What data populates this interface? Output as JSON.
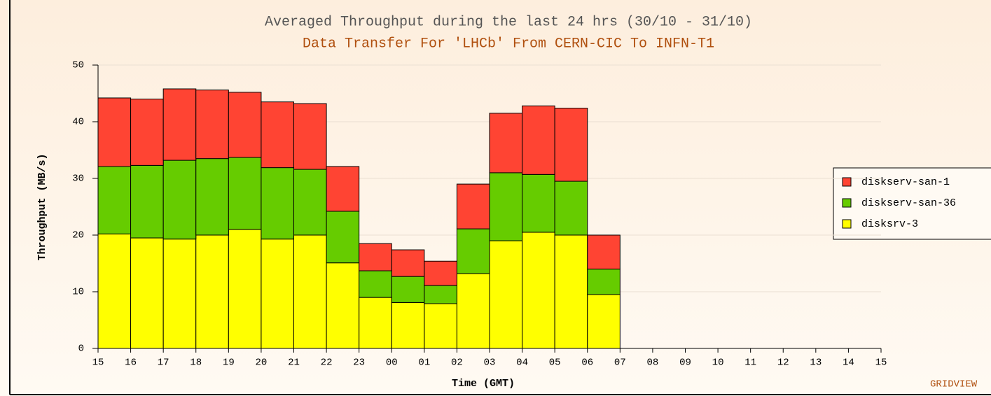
{
  "chart_data": {
    "type": "stacked_bar",
    "title": "Averaged Throughput during the last 24 hrs (30/10 - 31/10)",
    "subtitle": "Data Transfer For 'LHCb' From CERN-CIC To INFN-T1",
    "x_label": "Time (GMT)",
    "y_label": "Throughput (MB/s)",
    "footer": "GRIDVIEW",
    "categories": [
      "15",
      "16",
      "17",
      "18",
      "19",
      "20",
      "21",
      "22",
      "23",
      "00",
      "01",
      "02",
      "03",
      "04",
      "05",
      "06",
      "07",
      "08",
      "09",
      "10",
      "11",
      "12",
      "13",
      "14",
      "15"
    ],
    "series": [
      {
        "name": "disksrv-3",
        "color": "#ffff00",
        "values": [
          20.2,
          19.5,
          19.3,
          20,
          21,
          19.3,
          20,
          15.1,
          9,
          8.1,
          7.9,
          13.2,
          19,
          20.5,
          20,
          9.5,
          null,
          null,
          null,
          null,
          null,
          null,
          null,
          null,
          null
        ]
      },
      {
        "name": "diskserv-san-36",
        "color": "#66cc00",
        "values": [
          11.9,
          12.8,
          13.9,
          13.5,
          12.7,
          12.6,
          11.6,
          9.1,
          4.7,
          4.6,
          3.2,
          7.9,
          12,
          10.2,
          9.5,
          4.5,
          null,
          null,
          null,
          null,
          null,
          null,
          null,
          null,
          null
        ]
      },
      {
        "name": "diskserv-san-1",
        "color": "#ff4433",
        "values": [
          12.1,
          11.7,
          12.6,
          12.1,
          11.5,
          11.6,
          11.6,
          7.9,
          4.8,
          4.7,
          4.3,
          7.9,
          10.5,
          12.1,
          12.9,
          6,
          null,
          null,
          null,
          null,
          null,
          null,
          null,
          null,
          null
        ]
      }
    ],
    "ylim": [
      0,
      50
    ],
    "yticks": [
      0,
      10,
      20,
      30,
      40,
      50
    ],
    "grid": true
  }
}
